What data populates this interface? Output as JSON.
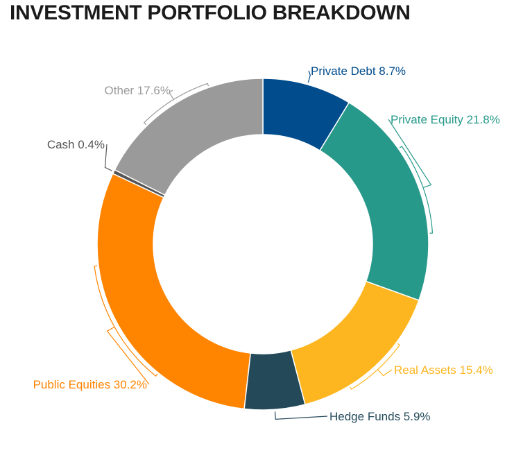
{
  "chart_data": {
    "type": "pie",
    "title": "INVESTMENT PORTFOLIO BREAKDOWN",
    "hole": "donut",
    "slices": [
      {
        "name": "Private Debt",
        "value": 8.7,
        "label": "Private Debt 8.7%",
        "color": "#004C8C"
      },
      {
        "name": "Private Equity",
        "value": 21.8,
        "label": "Private Equity 21.8%",
        "color": "#27998A"
      },
      {
        "name": "Real Assets",
        "value": 15.4,
        "label": "Real Assets 15.4%",
        "color": "#FDB61F"
      },
      {
        "name": "Hedge Funds",
        "value": 5.9,
        "label": "Hedge Funds 5.9%",
        "color": "#244A5A"
      },
      {
        "name": "Public Equities",
        "value": 30.2,
        "label": "Public Equities 30.2%",
        "color": "#FF8400"
      },
      {
        "name": "Cash",
        "value": 0.4,
        "label": "Cash 0.4%",
        "color": "#555555"
      },
      {
        "name": "Other",
        "value": 17.6,
        "label": "Other 17.6%",
        "color": "#9A9A9A"
      }
    ],
    "label_colors": {
      "Private Debt": "#004C8C",
      "Private Equity": "#27998A",
      "Real Assets": "#FDB61F",
      "Hedge Funds": "#244A5A",
      "Public Equities": "#FF8400",
      "Cash": "#555555",
      "Other": "#9A9A9A"
    }
  }
}
